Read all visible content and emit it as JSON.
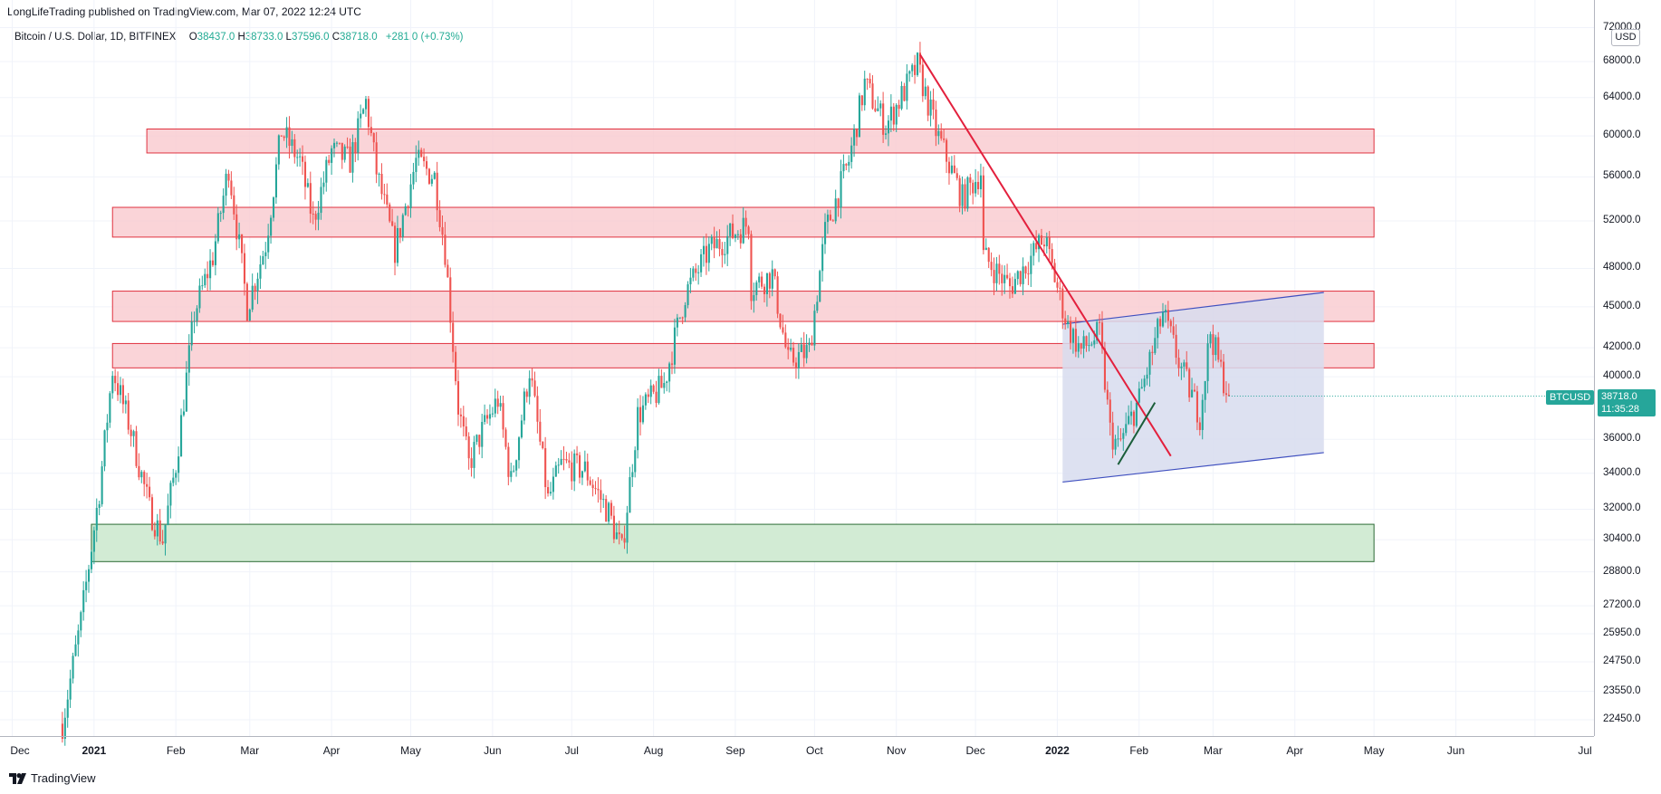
{
  "header": {
    "published_text": "LongLifeTrading published on TradingView.com, Mar 07, 2022 12:24 UTC"
  },
  "legend": {
    "symbol": "Bitcoin / U.S. Dollar, 1D, BITFINEX",
    "open_label": "O",
    "open": "38437.0",
    "high_label": "H",
    "high": "38733.0",
    "low_label": "L",
    "low": "37596.0",
    "close_label": "C",
    "close": "38718.0",
    "change": "+281.0 (+0.73%)"
  },
  "currency": "USD",
  "symbol_tag": "BTCUSD",
  "last_price": "38718.0",
  "countdown": "11:35:28",
  "footer": {
    "brand": "TradingView",
    "logo": "tradingview-logo-icon"
  },
  "colors": {
    "up": "#26a69a",
    "down": "#ef5350",
    "resistance_fill": "#f9c9ce",
    "resistance_stroke": "#e0323f",
    "support_fill": "#d0ead2",
    "support_stroke": "#2c6b34",
    "channel_fill": "#d7dcee",
    "channel_stroke": "#3f4fbf",
    "trend_down": "#e3203d",
    "trend_up": "#1b5e3a"
  },
  "chart_data": {
    "type": "candlestick",
    "title": "Bitcoin / U.S. Dollar, 1D, BITFINEX",
    "x_labels": [
      "Dec",
      "2021",
      "Feb",
      "Mar",
      "Apr",
      "May",
      "Jun",
      "Jul",
      "Aug",
      "Sep",
      "Oct",
      "Nov",
      "Dec",
      "2022",
      "Feb",
      "Mar",
      "Apr",
      "May",
      "Jun",
      "Jul"
    ],
    "y_scale": "log",
    "y_ticks": [
      "72000.0",
      "68000.0",
      "64000.0",
      "60000.0",
      "56000.0",
      "52000.0",
      "48000.0",
      "45000.0",
      "42000.0",
      "40000.0",
      "36000.0",
      "34000.0",
      "32000.0",
      "30400.0",
      "28800.0",
      "27200.0",
      "25950.0",
      "24750.0",
      "23550.0",
      "22450.0"
    ],
    "y_values": [
      72000,
      68000,
      64000,
      60000,
      56000,
      52000,
      48000,
      45000,
      42000,
      40000,
      36000,
      34000,
      32000,
      30400,
      28800,
      27200,
      25950,
      24750,
      23550,
      22450
    ],
    "price_path": [
      {
        "date": "2020-12-20",
        "price": 22300
      },
      {
        "date": "2020-12-27",
        "price": 26500
      },
      {
        "date": "2021-01-03",
        "price": 33000
      },
      {
        "date": "2021-01-08",
        "price": 40500
      },
      {
        "date": "2021-01-15",
        "price": 36500
      },
      {
        "date": "2021-01-22",
        "price": 32000
      },
      {
        "date": "2021-01-27",
        "price": 30400
      },
      {
        "date": "2021-02-01",
        "price": 34500
      },
      {
        "date": "2021-02-08",
        "price": 44500
      },
      {
        "date": "2021-02-15",
        "price": 49000
      },
      {
        "date": "2021-02-21",
        "price": 57000
      },
      {
        "date": "2021-02-28",
        "price": 45000
      },
      {
        "date": "2021-03-07",
        "price": 50000
      },
      {
        "date": "2021-03-13",
        "price": 60500
      },
      {
        "date": "2021-03-20",
        "price": 57500
      },
      {
        "date": "2021-03-25",
        "price": 52000
      },
      {
        "date": "2021-04-01",
        "price": 58500
      },
      {
        "date": "2021-04-08",
        "price": 57500
      },
      {
        "date": "2021-04-14",
        "price": 63500
      },
      {
        "date": "2021-04-18",
        "price": 56500
      },
      {
        "date": "2021-04-25",
        "price": 49500
      },
      {
        "date": "2021-05-03",
        "price": 57500
      },
      {
        "date": "2021-05-10",
        "price": 56000
      },
      {
        "date": "2021-05-14",
        "price": 49500
      },
      {
        "date": "2021-05-19",
        "price": 38000
      },
      {
        "date": "2021-05-23",
        "price": 34500
      },
      {
        "date": "2021-05-28",
        "price": 36500
      },
      {
        "date": "2021-06-03",
        "price": 38500
      },
      {
        "date": "2021-06-08",
        "price": 33500
      },
      {
        "date": "2021-06-15",
        "price": 40500
      },
      {
        "date": "2021-06-22",
        "price": 32500
      },
      {
        "date": "2021-06-27",
        "price": 34500
      },
      {
        "date": "2021-07-06",
        "price": 34200
      },
      {
        "date": "2021-07-15",
        "price": 31800
      },
      {
        "date": "2021-07-20",
        "price": 29800
      },
      {
        "date": "2021-07-26",
        "price": 37500
      },
      {
        "date": "2021-08-05",
        "price": 39500
      },
      {
        "date": "2021-08-13",
        "price": 46000
      },
      {
        "date": "2021-08-22",
        "price": 49500
      },
      {
        "date": "2021-09-06",
        "price": 51800
      },
      {
        "date": "2021-09-07",
        "price": 46500
      },
      {
        "date": "2021-09-15",
        "price": 47500
      },
      {
        "date": "2021-09-21",
        "price": 41000
      },
      {
        "date": "2021-09-29",
        "price": 41800
      },
      {
        "date": "2021-10-05",
        "price": 51000
      },
      {
        "date": "2021-10-14",
        "price": 57500
      },
      {
        "date": "2021-10-20",
        "price": 65500
      },
      {
        "date": "2021-10-28",
        "price": 61000
      },
      {
        "date": "2021-11-09",
        "price": 67500
      },
      {
        "date": "2021-11-16",
        "price": 60500
      },
      {
        "date": "2021-11-26",
        "price": 54000
      },
      {
        "date": "2021-12-03",
        "price": 56500
      },
      {
        "date": "2021-12-04",
        "price": 49000
      },
      {
        "date": "2021-12-14",
        "price": 46500
      },
      {
        "date": "2021-12-27",
        "price": 50500
      },
      {
        "date": "2022-01-05",
        "price": 43500
      },
      {
        "date": "2022-01-10",
        "price": 41800
      },
      {
        "date": "2022-01-17",
        "price": 43000
      },
      {
        "date": "2022-01-21",
        "price": 36500
      },
      {
        "date": "2022-01-24",
        "price": 35500
      },
      {
        "date": "2022-02-01",
        "price": 38500
      },
      {
        "date": "2022-02-10",
        "price": 44500
      },
      {
        "date": "2022-02-17",
        "price": 40500
      },
      {
        "date": "2022-02-24",
        "price": 37500
      },
      {
        "date": "2022-02-28",
        "price": 43200
      },
      {
        "date": "2022-03-03",
        "price": 41000
      },
      {
        "date": "2022-03-07",
        "price": 38718
      }
    ],
    "zones": [
      {
        "kind": "resistance",
        "from": "2021-01-21",
        "to": "2022-05-01",
        "low": 58300,
        "high": 60700
      },
      {
        "kind": "resistance",
        "from": "2021-01-08",
        "to": "2022-05-01",
        "low": 50600,
        "high": 53200
      },
      {
        "kind": "resistance",
        "from": "2021-01-08",
        "to": "2022-05-01",
        "low": 43900,
        "high": 46200
      },
      {
        "kind": "resistance",
        "from": "2021-01-08",
        "to": "2022-05-01",
        "low": 40600,
        "high": 42300
      },
      {
        "kind": "support",
        "from": "2020-12-31",
        "to": "2022-05-01",
        "low": 29300,
        "high": 31200
      }
    ],
    "channel": {
      "from": "2022-01-03",
      "to": "2022-04-12",
      "lower_start": 33500,
      "lower_end": 35200,
      "upper_start": 43700,
      "upper_end": 46100
    },
    "trendlines": [
      {
        "kind": "down",
        "from_date": "2021-11-10",
        "from_price": 68800,
        "to_date": "2022-02-13",
        "to_price": 35000
      },
      {
        "kind": "up",
        "from_date": "2022-01-24",
        "from_price": 34500,
        "to_date": "2022-02-07",
        "to_price": 38300
      }
    ],
    "last_close": 38718.0
  }
}
